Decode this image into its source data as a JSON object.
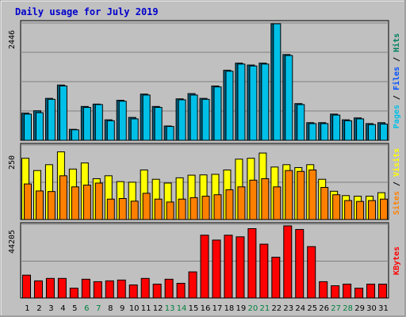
{
  "title": "Daily usage for July 2019",
  "colors": {
    "pages": "#00c0e8",
    "files": "#0050ff",
    "hits": "#008060",
    "sites": "#ff8000",
    "visits": "#ffff00",
    "kbytes": "#ff0000",
    "weekend": "#008040",
    "weekday": "#000000",
    "title": "#0000cc",
    "plot_bg": "#c0c0c0"
  },
  "chart_data": [
    {
      "type": "bar",
      "panel": "hits-files-pages",
      "ymax_label": "2446",
      "ylim": [
        0,
        2446
      ],
      "legend": [
        {
          "key": "pages",
          "label": "Pages"
        },
        {
          "key": "sep1",
          "label": " / "
        },
        {
          "key": "files",
          "label": "Files"
        },
        {
          "key": "sep2",
          "label": " / "
        },
        {
          "key": "hits",
          "label": "Hits"
        }
      ],
      "categories": [
        "1",
        "2",
        "3",
        "4",
        "5",
        "6",
        "7",
        "8",
        "9",
        "10",
        "11",
        "12",
        "13",
        "14",
        "15",
        "16",
        "17",
        "18",
        "19",
        "20",
        "21",
        "22",
        "23",
        "24",
        "25",
        "26",
        "27",
        "28",
        "29",
        "30",
        "31"
      ],
      "series": [
        {
          "name": "Hits",
          "values": [
            570,
            620,
            880,
            1160,
            230,
            710,
            760,
            430,
            840,
            480,
            970,
            710,
            300,
            870,
            980,
            880,
            1140,
            1470,
            1620,
            1580,
            1620,
            2446,
            1800,
            770,
            370,
            370,
            550,
            430,
            470,
            350,
            370
          ]
        },
        {
          "name": "Pages",
          "values": [
            550,
            580,
            860,
            1140,
            220,
            690,
            750,
            410,
            820,
            450,
            950,
            690,
            290,
            850,
            950,
            860,
            1120,
            1450,
            1600,
            1560,
            1600,
            2446,
            1780,
            750,
            350,
            350,
            530,
            410,
            450,
            330,
            340
          ]
        }
      ]
    },
    {
      "type": "bar",
      "panel": "visits-sites",
      "ymax_label": "250",
      "ylim": [
        0,
        250
      ],
      "legend": [
        {
          "key": "sites",
          "label": "Sites"
        },
        {
          "key": "sep1",
          "label": " / "
        },
        {
          "key": "visits",
          "label": "Visits"
        }
      ],
      "categories": [
        "1",
        "2",
        "3",
        "4",
        "5",
        "6",
        "7",
        "8",
        "9",
        "10",
        "11",
        "12",
        "13",
        "14",
        "15",
        "16",
        "17",
        "18",
        "19",
        "20",
        "21",
        "22",
        "23",
        "24",
        "25",
        "26",
        "27",
        "28",
        "29",
        "30",
        "31"
      ],
      "series": [
        {
          "name": "Visits",
          "values": [
            210,
            168,
            188,
            232,
            173,
            194,
            140,
            150,
            130,
            128,
            170,
            138,
            125,
            143,
            152,
            153,
            155,
            170,
            207,
            210,
            228,
            180,
            188,
            178,
            188,
            138,
            97,
            82,
            80,
            80,
            92
          ]
        },
        {
          "name": "Sites",
          "values": [
            122,
            98,
            96,
            150,
            112,
            118,
            125,
            70,
            72,
            63,
            90,
            70,
            60,
            70,
            75,
            80,
            85,
            102,
            112,
            135,
            140,
            112,
            168,
            165,
            170,
            110,
            85,
            65,
            62,
            65,
            70
          ]
        }
      ]
    },
    {
      "type": "bar",
      "panel": "kbytes",
      "ymax_label": "44205",
      "ylim": [
        0,
        44205
      ],
      "legend": [
        {
          "key": "kbytes",
          "label": "KBytes"
        }
      ],
      "categories": [
        "1",
        "2",
        "3",
        "4",
        "5",
        "6",
        "7",
        "8",
        "9",
        "10",
        "11",
        "12",
        "13",
        "14",
        "15",
        "16",
        "17",
        "18",
        "19",
        "20",
        "21",
        "22",
        "23",
        "24",
        "25",
        "26",
        "27",
        "28",
        "29",
        "30",
        "31"
      ],
      "series": [
        {
          "name": "KBytes",
          "values": [
            14000,
            10500,
            12000,
            12000,
            6000,
            11500,
            10000,
            10500,
            11000,
            8000,
            12000,
            8500,
            11500,
            9000,
            16000,
            38500,
            35500,
            38500,
            37500,
            42500,
            33000,
            25000,
            44205,
            42000,
            31500,
            10000,
            7500,
            8500,
            6000,
            8500,
            8500
          ]
        }
      ]
    }
  ],
  "days": [
    {
      "label": "1",
      "weekend": false
    },
    {
      "label": "2",
      "weekend": false
    },
    {
      "label": "3",
      "weekend": false
    },
    {
      "label": "4",
      "weekend": false
    },
    {
      "label": "5",
      "weekend": false
    },
    {
      "label": "6",
      "weekend": true
    },
    {
      "label": "7",
      "weekend": true
    },
    {
      "label": "8",
      "weekend": false
    },
    {
      "label": "9",
      "weekend": false
    },
    {
      "label": "10",
      "weekend": false
    },
    {
      "label": "11",
      "weekend": false
    },
    {
      "label": "12",
      "weekend": false
    },
    {
      "label": "13",
      "weekend": true
    },
    {
      "label": "14",
      "weekend": true
    },
    {
      "label": "15",
      "weekend": false
    },
    {
      "label": "16",
      "weekend": false
    },
    {
      "label": "17",
      "weekend": false
    },
    {
      "label": "18",
      "weekend": false
    },
    {
      "label": "19",
      "weekend": false
    },
    {
      "label": "20",
      "weekend": true
    },
    {
      "label": "21",
      "weekend": true
    },
    {
      "label": "22",
      "weekend": false
    },
    {
      "label": "23",
      "weekend": false
    },
    {
      "label": "24",
      "weekend": false
    },
    {
      "label": "25",
      "weekend": false
    },
    {
      "label": "26",
      "weekend": false
    },
    {
      "label": "27",
      "weekend": true
    },
    {
      "label": "28",
      "weekend": true
    },
    {
      "label": "29",
      "weekend": false
    },
    {
      "label": "30",
      "weekend": false
    },
    {
      "label": "31",
      "weekend": false
    }
  ]
}
